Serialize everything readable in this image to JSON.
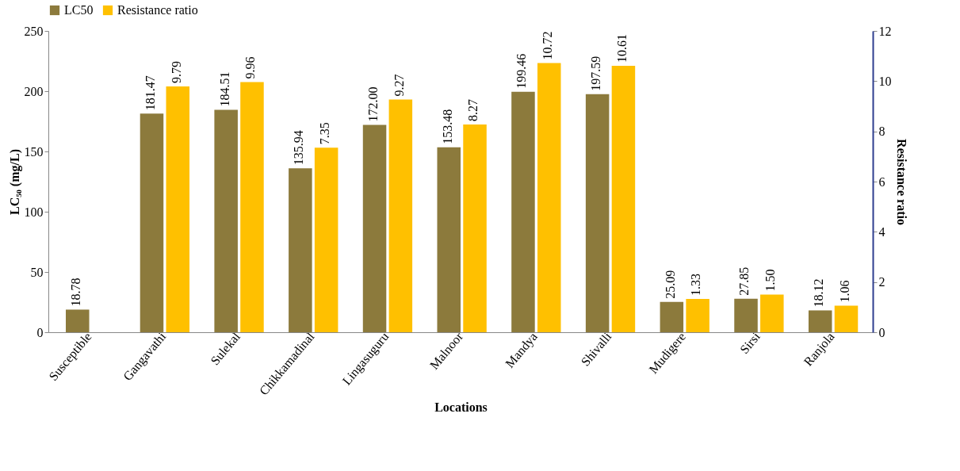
{
  "chart_data": {
    "type": "bar",
    "xlabel": "Locations",
    "ylabel": "LC₅₀ (mg/L)",
    "y2label": "Resistance ratio",
    "categories": [
      "Susceptible",
      "Gangavathi",
      "Sulekal",
      "Chikkamadinal",
      "Lingasuguru",
      "Malnoor",
      "Mandya",
      "Shivalli",
      "Mudigere",
      "Sirsi",
      "Ranjola"
    ],
    "series": [
      {
        "name": "LC50",
        "color": "#8c7a3c",
        "values": [
          18.78,
          181.47,
          184.51,
          135.94,
          172.0,
          153.48,
          199.46,
          197.59,
          25.09,
          27.85,
          18.12
        ],
        "value_labels": [
          "18.78",
          "181.47",
          "184.51",
          "135.94",
          "172.00",
          "153.48",
          "199.46",
          "197.59",
          "25.09",
          "27.85",
          "18.12"
        ]
      },
      {
        "name": "Resistance ratio",
        "color": "#ffc000",
        "axis": "y2",
        "values": [
          null,
          9.79,
          9.96,
          7.35,
          9.27,
          8.27,
          10.72,
          10.61,
          1.33,
          1.5,
          1.06
        ],
        "value_labels": [
          null,
          "9.79",
          "9.96",
          "7.35",
          "9.27",
          "8.27",
          "10.72",
          "10.61",
          "1.33",
          "1.50",
          "1.06"
        ]
      }
    ],
    "ylim": [
      0,
      250
    ],
    "yticks": [
      0,
      50,
      100,
      150,
      200,
      250
    ],
    "y2lim": [
      0,
      12
    ],
    "y2ticks": [
      0,
      2,
      4,
      6,
      8,
      10,
      12
    ],
    "grid": false,
    "legend": "top"
  }
}
